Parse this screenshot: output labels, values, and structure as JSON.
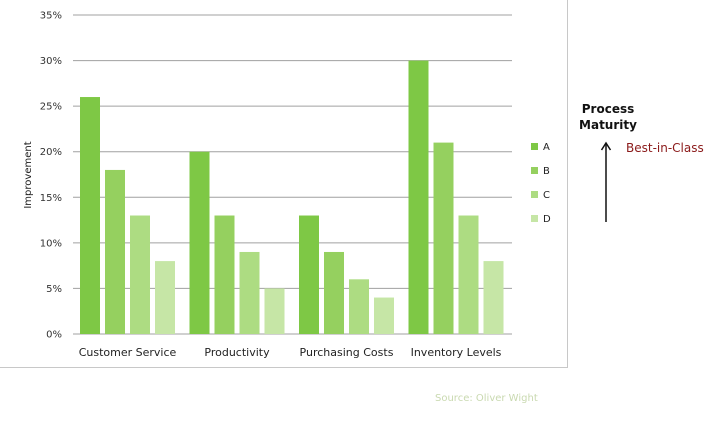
{
  "chart_data": {
    "type": "bar",
    "ylabel": "Improvement",
    "ylim": [
      0,
      35
    ],
    "ytick_values": [
      0,
      5,
      10,
      15,
      20,
      25,
      30,
      35
    ],
    "ytick_labels": [
      "0%",
      "5%",
      "10%",
      "15%",
      "20%",
      "25%",
      "30%",
      "35%"
    ],
    "grid": true,
    "legend_position": "right",
    "categories": [
      "Customer Service",
      "Productivity",
      "Purchasing Costs",
      "Inventory Levels"
    ],
    "series": [
      {
        "name": "A",
        "color": "#7ec845",
        "values": [
          26,
          20,
          13,
          30
        ]
      },
      {
        "name": "B",
        "color": "#95d05f",
        "values": [
          18,
          13,
          9,
          21
        ]
      },
      {
        "name": "C",
        "color": "#addc82",
        "values": [
          13,
          9,
          6,
          13
        ]
      },
      {
        "name": "D",
        "color": "#c6e6a6",
        "values": [
          8,
          5,
          4,
          8
        ]
      }
    ]
  },
  "side_panel": {
    "title_line1": "Process",
    "title_line2": "Maturity",
    "best_label": "Best-in-Class"
  },
  "source_text": "Source: Oliver Wight",
  "colors": {
    "grid": "#a0a0a0",
    "best_label": "#8b1a1a",
    "source": "#c9d9b0"
  },
  "icons": {
    "maturity_arrow": "up-arrow-icon"
  }
}
